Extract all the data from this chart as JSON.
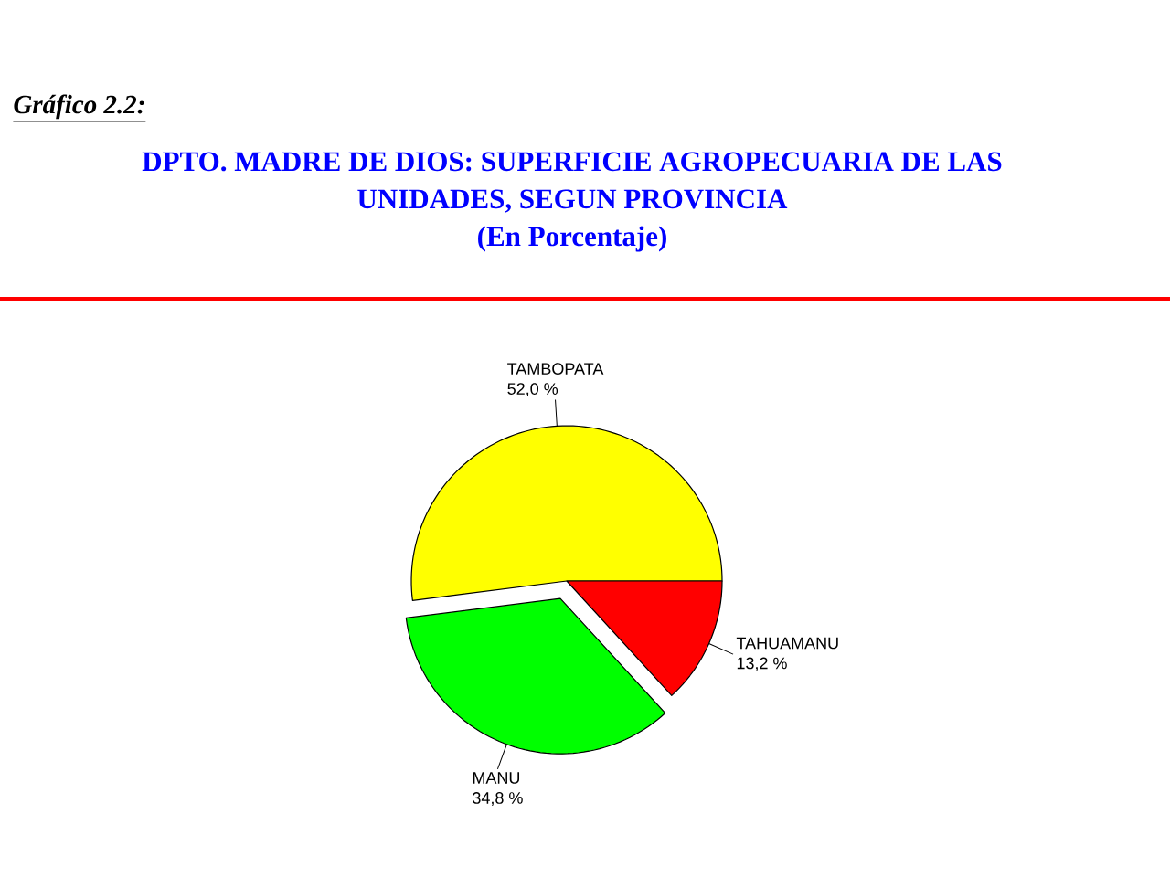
{
  "chart_data": {
    "type": "pie",
    "title": "DPTO. MADRE DE DIOS: SUPERFICIE AGROPECUARIA DE LAS UNIDADES, SEGUN PROVINCIA",
    "subtitle": "(En Porcentaje)",
    "annotations": [
      "Gráfico 2.2:"
    ],
    "categories": [
      "TAMBOPATA",
      "MANU",
      "TAHUAMANU"
    ],
    "values": [
      52.0,
      34.8,
      13.2
    ],
    "colors": [
      "#ffff00",
      "#00ff00",
      "#ff0000"
    ],
    "value_labels": [
      "52,0 %",
      "34,8 %",
      "13,2 %"
    ]
  }
}
